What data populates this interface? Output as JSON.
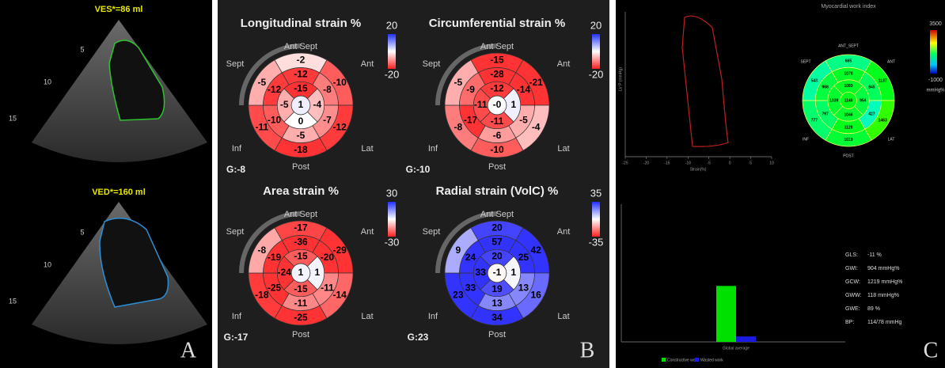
{
  "panel_a": {
    "label": "A",
    "top": {
      "measure": "VES*=86 ml",
      "depths": [
        5,
        10,
        15
      ]
    },
    "bottom": {
      "measure": "VED*=160 ml",
      "depths": [
        5,
        10,
        15
      ]
    }
  },
  "panel_b": {
    "label": "B",
    "plots": [
      {
        "title": "Longitudinal strain %",
        "scale_max": 20,
        "scale_min": -20,
        "global": "G:-8",
        "orientation": [
          "Ant Sept",
          "Ant",
          "Lat",
          "Post",
          "Inf",
          "Sept"
        ],
        "basal": [
          -2,
          -10,
          -12,
          -18,
          -11,
          -5
        ],
        "mid": [
          -12,
          -8,
          -7,
          -5,
          -10,
          -12
        ],
        "apical": [
          -15,
          -4,
          0,
          -5
        ],
        "apex": 1
      },
      {
        "title": "Circumferential strain %",
        "scale_max": 20,
        "scale_min": -20,
        "global": "G:-10",
        "orientation": [
          "Ant Sept",
          "Ant",
          "Lat",
          "Post",
          "Inf",
          "Sept"
        ],
        "basal": [
          -15,
          -21,
          -4,
          -10,
          -8,
          -5
        ],
        "mid": [
          -28,
          -14,
          -5,
          -6,
          -17,
          -9
        ],
        "apical": [
          -12,
          1,
          -11,
          -11
        ],
        "apex": "-0"
      },
      {
        "title": "Area strain %",
        "scale_max": 30,
        "scale_min": -30,
        "global": "G:-17",
        "orientation": [
          "Ant Sept",
          "Ant",
          "Lat",
          "Post",
          "Inf",
          "Sept"
        ],
        "basal": [
          -17,
          -29,
          -14,
          -25,
          -18,
          -8
        ],
        "mid": [
          -36,
          -20,
          -11,
          -11,
          -25,
          -19
        ],
        "apical": [
          -15,
          1,
          -15,
          -24
        ],
        "apex": 1
      },
      {
        "title": "Radial strain (VolC) %",
        "scale_max": 35,
        "scale_min": -35,
        "global": "G:23",
        "orientation": [
          "Ant Sept",
          "Ant",
          "Lat",
          "Post",
          "Inf",
          "Sept"
        ],
        "basal": [
          20,
          42,
          16,
          34,
          23,
          9
        ],
        "mid": [
          57,
          25,
          13,
          13,
          33,
          24
        ],
        "apical": [
          20,
          1,
          19,
          33
        ],
        "apex": -1
      }
    ]
  },
  "panel_c": {
    "label": "C",
    "title": "Myocardial work index",
    "loop": {
      "x_label": "Strain(%)",
      "y_label": "LV P (mmHg)",
      "xlim": [
        -25,
        10
      ],
      "xticks": [
        -25,
        -20,
        -15,
        -10,
        -5,
        0,
        5,
        10
      ]
    },
    "work_map": {
      "scale_max": 3500,
      "scale_min": -1000,
      "unit": "mmHg%",
      "orientation": [
        "ANT_SEPT",
        "ANT",
        "LAT",
        "POST",
        "INF",
        "SEPT"
      ],
      "basal": [
        665,
        1137,
        1463,
        1019,
        777,
        543
      ],
      "mid": [
        1078,
        845,
        427,
        1128,
        797,
        968
      ],
      "apical": [
        1083,
        954,
        1046,
        1039
      ],
      "apex": 1140
    },
    "bar_chart": {
      "categories": [
        "Global average"
      ],
      "ylim": [
        0,
        3000
      ],
      "series": [
        {
          "name": "Constructive work",
          "color": "#00e000",
          "values": [
            1219
          ]
        },
        {
          "name": "Wasted work",
          "color": "#1a1ae0",
          "values": [
            118
          ]
        }
      ]
    },
    "stats": [
      [
        "GLS:",
        "-11 %"
      ],
      [
        "GWI:",
        "904 mmHg%"
      ],
      [
        "GCW:",
        "1219 mmHg%"
      ],
      [
        "GWW:",
        "118 mmHg%"
      ],
      [
        "GWE:",
        "89 %"
      ],
      [
        "BP:",
        "114/78 mmHg"
      ]
    ]
  }
}
